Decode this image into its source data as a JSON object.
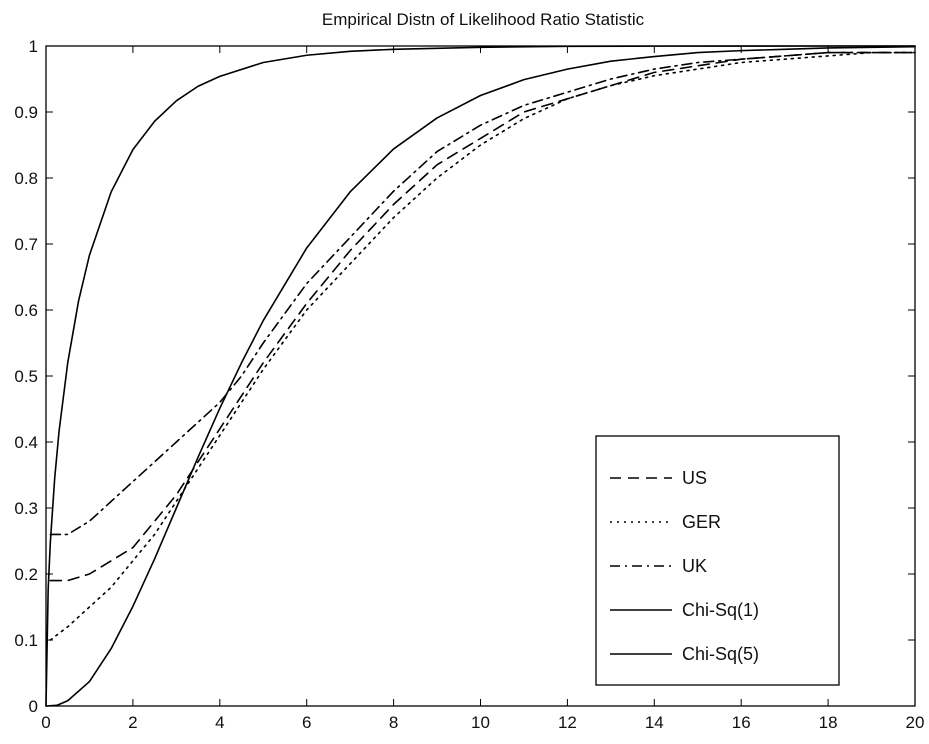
{
  "chart_data": {
    "type": "line",
    "title": "Empirical Distn of Likelihood Ratio Statistic",
    "xlabel": "",
    "ylabel": "",
    "xlim": [
      0,
      20
    ],
    "ylim": [
      0,
      1
    ],
    "xticks": [
      0,
      2,
      4,
      6,
      8,
      10,
      12,
      14,
      16,
      18,
      20
    ],
    "yticks": [
      0,
      0.1,
      0.2,
      0.3,
      0.4,
      0.5,
      0.6,
      0.7,
      0.8,
      0.9,
      1
    ],
    "xtick_labels": [
      "0",
      "2",
      "4",
      "6",
      "8",
      "10",
      "12",
      "14",
      "16",
      "18",
      "20"
    ],
    "ytick_labels": [
      "0",
      "0.1",
      "0.2",
      "0.3",
      "0.4",
      "0.5",
      "0.6",
      "0.7",
      "0.8",
      "0.9",
      "1"
    ],
    "grid": false,
    "legend_position": "lower-right",
    "series": [
      {
        "name": "US",
        "style": "dashed",
        "color": "#000000",
        "x": [
          0.1,
          0.5,
          1,
          1.5,
          2,
          2.5,
          3,
          3.5,
          4,
          4.5,
          5,
          6,
          7,
          8,
          9,
          10,
          11,
          12,
          13,
          14,
          15,
          16,
          17,
          18,
          19,
          20
        ],
        "y": [
          0.19,
          0.19,
          0.2,
          0.22,
          0.24,
          0.28,
          0.32,
          0.37,
          0.42,
          0.47,
          0.52,
          0.61,
          0.69,
          0.76,
          0.82,
          0.86,
          0.9,
          0.92,
          0.94,
          0.96,
          0.97,
          0.98,
          0.985,
          0.99,
          0.99,
          0.99
        ]
      },
      {
        "name": "GER",
        "style": "dotted",
        "color": "#000000",
        "x": [
          0.1,
          0.5,
          1,
          1.5,
          2,
          2.5,
          3,
          3.5,
          4,
          4.5,
          5,
          6,
          7,
          8,
          9,
          10,
          11,
          12,
          13,
          14,
          15,
          16,
          17,
          18,
          19,
          20
        ],
        "y": [
          0.1,
          0.12,
          0.15,
          0.18,
          0.22,
          0.26,
          0.31,
          0.36,
          0.41,
          0.46,
          0.51,
          0.6,
          0.67,
          0.74,
          0.8,
          0.85,
          0.89,
          0.92,
          0.94,
          0.955,
          0.965,
          0.975,
          0.98,
          0.985,
          0.99,
          0.99
        ]
      },
      {
        "name": "UK",
        "style": "dashdot",
        "color": "#000000",
        "x": [
          0.1,
          0.5,
          1,
          1.5,
          2,
          2.5,
          3,
          3.5,
          4,
          4.5,
          5,
          6,
          7,
          8,
          9,
          10,
          11,
          12,
          13,
          14,
          15,
          16,
          17,
          18,
          19,
          20
        ],
        "y": [
          0.26,
          0.26,
          0.28,
          0.31,
          0.34,
          0.37,
          0.4,
          0.43,
          0.46,
          0.5,
          0.55,
          0.64,
          0.71,
          0.78,
          0.84,
          0.88,
          0.91,
          0.93,
          0.95,
          0.965,
          0.975,
          0.98,
          0.985,
          0.99,
          0.99,
          0.99
        ]
      },
      {
        "name": "Chi-Sq(1)",
        "style": "solid",
        "color": "#000000",
        "x": [
          0,
          0.05,
          0.1,
          0.2,
          0.3,
          0.5,
          0.75,
          1,
          1.5,
          2,
          2.5,
          3,
          3.5,
          4,
          5,
          6,
          7,
          8,
          10,
          12,
          14,
          16,
          18,
          20
        ],
        "y": [
          0,
          0.177,
          0.248,
          0.345,
          0.416,
          0.52,
          0.614,
          0.683,
          0.779,
          0.843,
          0.886,
          0.917,
          0.939,
          0.954,
          0.975,
          0.986,
          0.992,
          0.995,
          0.998,
          0.9995,
          0.9998,
          0.9999,
          1,
          1
        ]
      },
      {
        "name": "Chi-Sq(5)",
        "style": "solid",
        "color": "#000000",
        "x": [
          0,
          0.25,
          0.5,
          1,
          1.5,
          2,
          2.5,
          3,
          3.5,
          4,
          4.5,
          5,
          6,
          7,
          8,
          9,
          10,
          11,
          12,
          13,
          14,
          15,
          16,
          17,
          18,
          19,
          20
        ],
        "y": [
          0,
          0.001,
          0.008,
          0.037,
          0.087,
          0.151,
          0.223,
          0.3,
          0.377,
          0.451,
          0.52,
          0.584,
          0.694,
          0.779,
          0.844,
          0.891,
          0.925,
          0.949,
          0.965,
          0.977,
          0.984,
          0.99,
          0.993,
          0.995,
          0.997,
          0.998,
          0.999
        ]
      }
    ]
  }
}
